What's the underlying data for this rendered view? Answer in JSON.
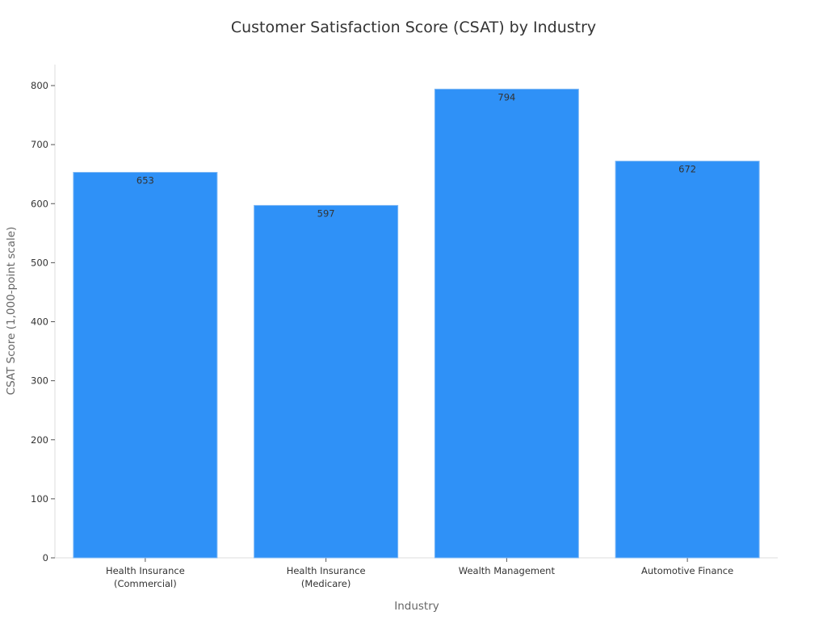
{
  "chart_data": {
    "type": "bar",
    "title": "Customer Satisfaction Score (CSAT) by Industry",
    "xlabel": "Industry",
    "ylabel": "CSAT Score (1,000-point scale)",
    "categories": [
      [
        "Health Insurance",
        "(Commercial)"
      ],
      [
        "Health Insurance",
        "(Medicare)"
      ],
      [
        "Wealth Management"
      ],
      [
        "Automotive Finance"
      ]
    ],
    "values": [
      653,
      597,
      794,
      672
    ],
    "data_labels": [
      "653",
      "597",
      "794",
      "672"
    ],
    "ylim": [
      0,
      835
    ],
    "yticks": [
      0,
      100,
      200,
      300,
      400,
      500,
      600,
      700,
      800
    ],
    "grid": false,
    "legend": "none",
    "bar_color": "#2f91f7",
    "bar_edge_color": "#7fb8f5"
  }
}
